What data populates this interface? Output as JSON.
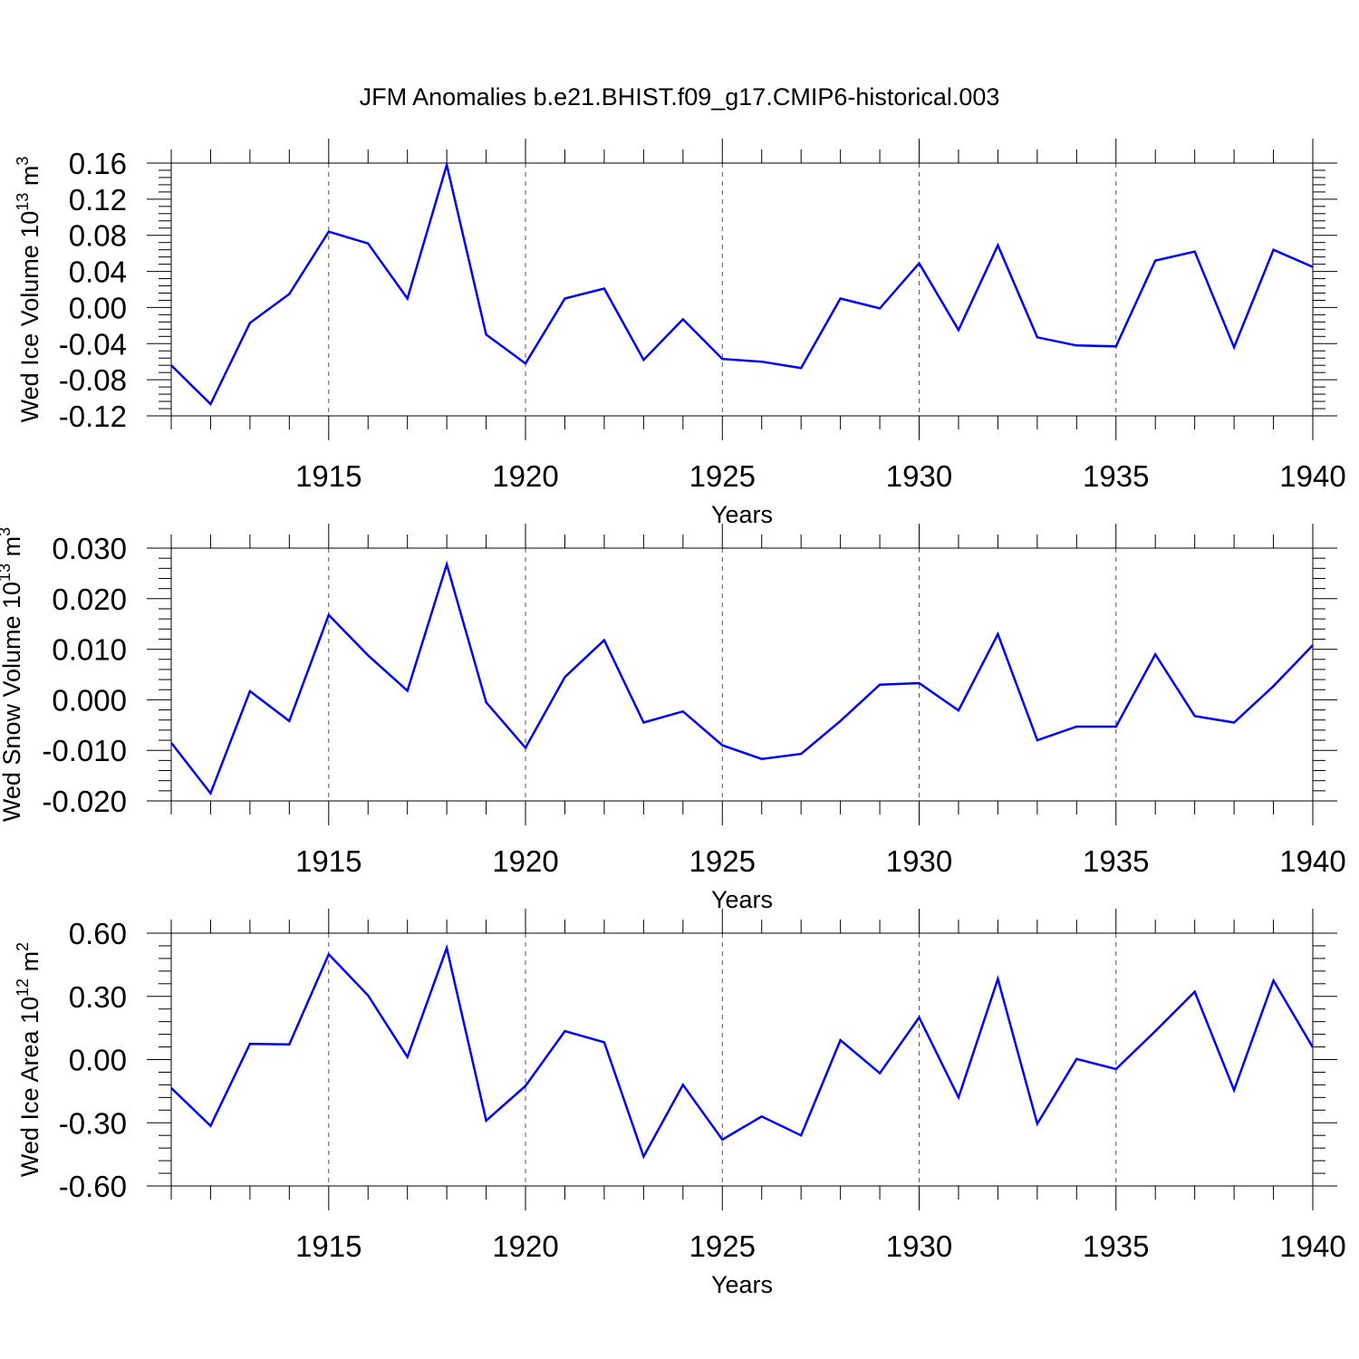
{
  "title": "JFM Anomalies b.e21.BHIST.f09_g17.CMIP6-historical.003",
  "chart_data": [
    {
      "type": "line",
      "ylabel": {
        "base": "Wed Ice Volume 10",
        "sup1": "13",
        "mid": " m",
        "sup2": "3"
      },
      "xlabel": "Years",
      "xlim": [
        1911,
        1940
      ],
      "ylim": [
        -0.12,
        0.16
      ],
      "yticks": [
        -0.12,
        -0.08,
        -0.04,
        0.0,
        0.04,
        0.08,
        0.12,
        0.16
      ],
      "ytick_labels": [
        "-0.12",
        "-0.08",
        "-0.04",
        "0.00",
        "0.04",
        "0.08",
        "0.12",
        "0.16"
      ],
      "xticks": [
        1915,
        1920,
        1925,
        1930,
        1935,
        1940
      ],
      "xtick_labels": [
        "1915",
        "1920",
        "1925",
        "1930",
        "1935",
        "1940"
      ],
      "grid": "vertical dashed at major x ticks",
      "line_color": "#0000ff",
      "x": [
        1911,
        1912,
        1913,
        1914,
        1915,
        1916,
        1917,
        1918,
        1919,
        1920,
        1921,
        1922,
        1923,
        1924,
        1925,
        1926,
        1927,
        1928,
        1929,
        1930,
        1931,
        1932,
        1933,
        1934,
        1935,
        1936,
        1937,
        1938,
        1939,
        1940
      ],
      "values": [
        -0.064,
        -0.107,
        -0.017,
        0.015,
        0.084,
        0.071,
        0.01,
        0.158,
        -0.03,
        -0.062,
        0.01,
        0.021,
        -0.058,
        -0.013,
        -0.057,
        -0.06,
        -0.067,
        0.01,
        -0.001,
        0.049,
        -0.025,
        0.069,
        -0.033,
        -0.042,
        -0.043,
        0.052,
        0.062,
        -0.044,
        0.064,
        0.045
      ]
    },
    {
      "type": "line",
      "ylabel": {
        "base": "Wed Snow Volume 10",
        "sup1": "13",
        "mid": " m",
        "sup2": "3"
      },
      "xlabel": "Years",
      "xlim": [
        1911,
        1940
      ],
      "ylim": [
        -0.02,
        0.03
      ],
      "yticks": [
        -0.02,
        -0.01,
        0.0,
        0.01,
        0.02,
        0.03
      ],
      "ytick_labels": [
        "-0.020",
        "-0.010",
        "0.000",
        "0.010",
        "0.020",
        "0.030"
      ],
      "xticks": [
        1915,
        1920,
        1925,
        1930,
        1935,
        1940
      ],
      "xtick_labels": [
        "1915",
        "1920",
        "1925",
        "1930",
        "1935",
        "1940"
      ],
      "grid": "vertical dashed at major x ticks",
      "line_color": "#0000ff",
      "x": [
        1911,
        1912,
        1913,
        1914,
        1915,
        1916,
        1917,
        1918,
        1919,
        1920,
        1921,
        1922,
        1923,
        1924,
        1925,
        1926,
        1927,
        1928,
        1929,
        1930,
        1931,
        1932,
        1933,
        1934,
        1935,
        1936,
        1937,
        1938,
        1939,
        1940
      ],
      "values": [
        -0.0085,
        -0.0185,
        0.0017,
        -0.0042,
        0.0168,
        0.0088,
        0.0018,
        0.0268,
        -0.0005,
        -0.0095,
        0.0045,
        0.0118,
        -0.0045,
        -0.0023,
        -0.009,
        -0.0117,
        -0.0107,
        -0.0042,
        0.003,
        0.0033,
        -0.0021,
        0.013,
        -0.008,
        -0.0053,
        -0.0053,
        0.009,
        -0.0032,
        -0.0045,
        0.0027,
        0.0108
      ]
    },
    {
      "type": "line",
      "ylabel": {
        "base": "Wed Ice Area 10",
        "sup1": "12",
        "mid": " m",
        "sup2": "2"
      },
      "xlabel": "Years",
      "xlim": [
        1911,
        1940
      ],
      "ylim": [
        -0.6,
        0.6
      ],
      "yticks": [
        -0.6,
        -0.3,
        0.0,
        0.3,
        0.6
      ],
      "ytick_labels": [
        "-0.60",
        "-0.30",
        "0.00",
        "0.30",
        "0.60"
      ],
      "xticks": [
        1915,
        1920,
        1925,
        1930,
        1935,
        1940
      ],
      "xtick_labels": [
        "1915",
        "1920",
        "1925",
        "1930",
        "1935",
        "1940"
      ],
      "grid": "vertical dashed at major x ticks",
      "line_color": "#0000ff",
      "x": [
        1911,
        1912,
        1913,
        1914,
        1915,
        1916,
        1917,
        1918,
        1919,
        1920,
        1921,
        1922,
        1923,
        1924,
        1925,
        1926,
        1927,
        1928,
        1929,
        1930,
        1931,
        1932,
        1933,
        1934,
        1935,
        1936,
        1937,
        1938,
        1939,
        1940
      ],
      "values": [
        -0.135,
        -0.315,
        0.075,
        0.072,
        0.5,
        0.305,
        0.012,
        0.53,
        -0.29,
        -0.125,
        0.135,
        0.082,
        -0.46,
        -0.12,
        -0.38,
        -0.27,
        -0.36,
        0.092,
        -0.065,
        0.2,
        -0.18,
        0.383,
        -0.305,
        0.003,
        -0.045,
        0.135,
        0.322,
        -0.145,
        0.375,
        0.058
      ]
    }
  ]
}
